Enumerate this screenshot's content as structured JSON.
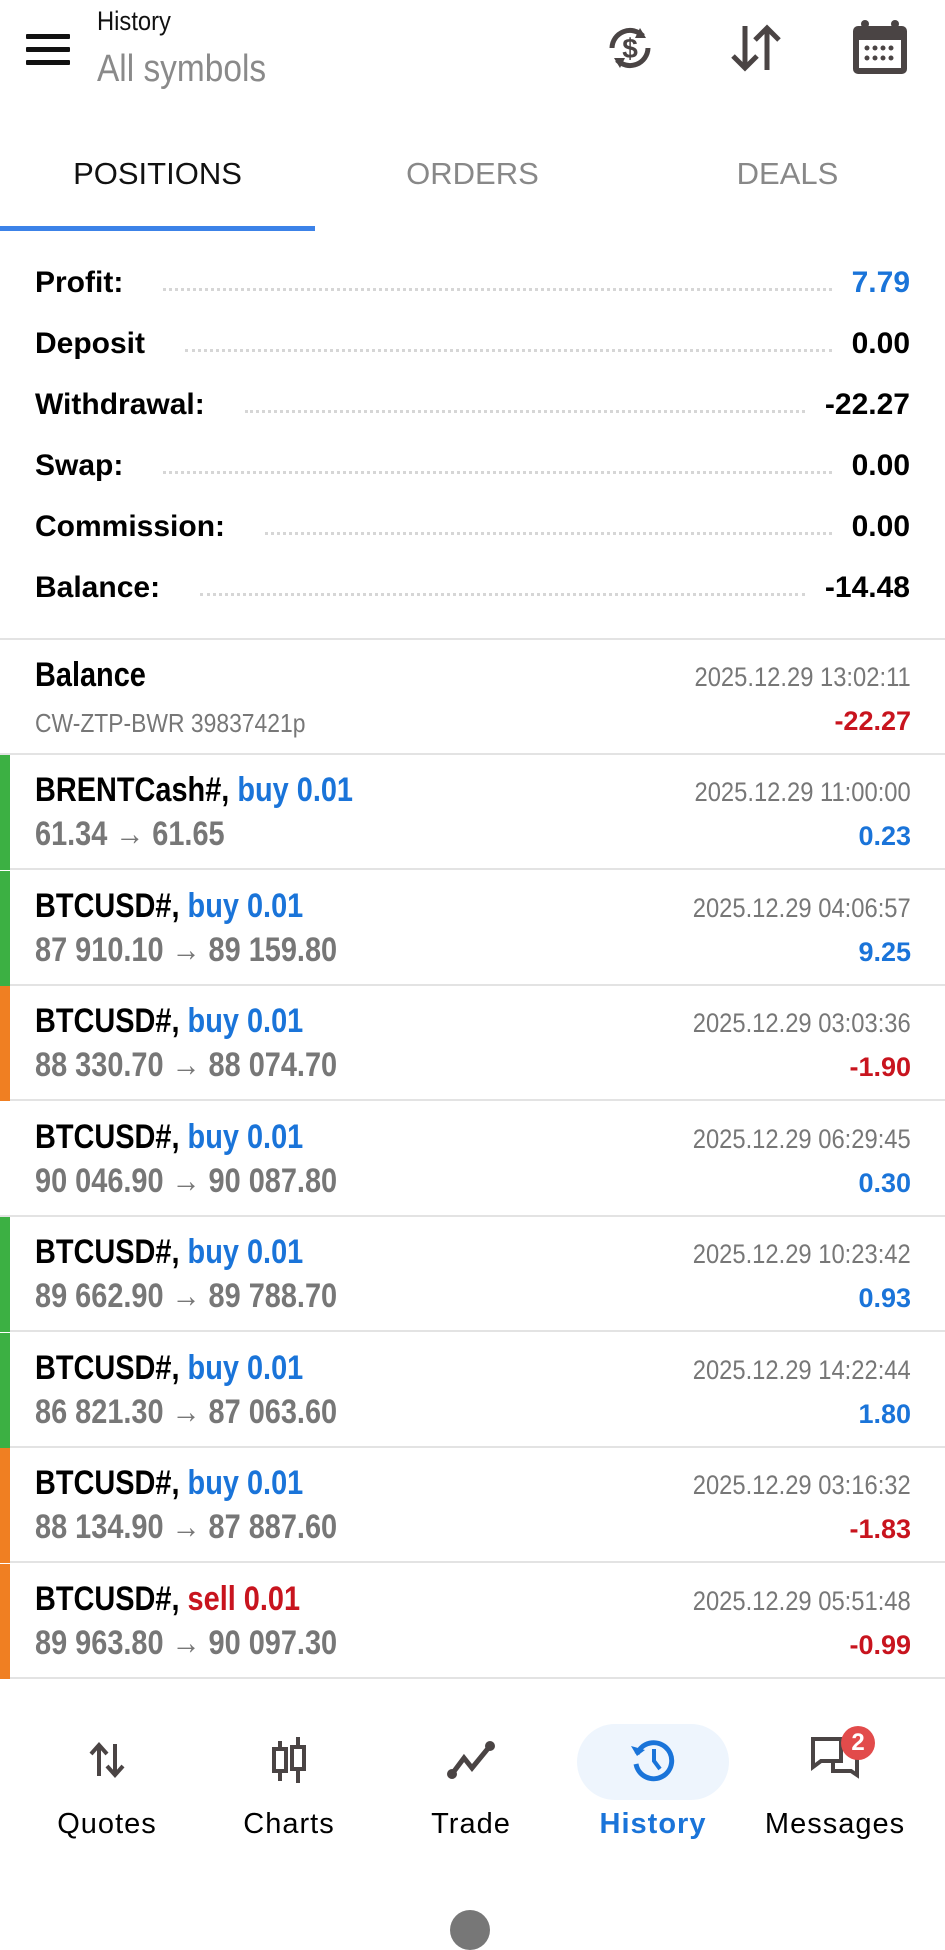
{
  "header": {
    "title": "History",
    "subtitle": "All symbols",
    "icons": [
      "menu-icon",
      "currency-exchange-icon",
      "sort-icon",
      "calendar-icon"
    ]
  },
  "tabs": [
    {
      "label": "POSITIONS",
      "active": true
    },
    {
      "label": "ORDERS"
    },
    {
      "label": "DEALS"
    }
  ],
  "summary": [
    {
      "label": "Profit:",
      "value": "7.79",
      "color": "#1a74d9"
    },
    {
      "label": "Deposit",
      "value": "0.00"
    },
    {
      "label": "Withdrawal:",
      "value": "-22.27"
    },
    {
      "label": "Swap:",
      "value": "0.00"
    },
    {
      "label": "Commission:",
      "value": "0.00"
    },
    {
      "label": "Balance:",
      "value": "-14.48"
    }
  ],
  "balance_entry": {
    "title": "Balance",
    "comment": "CW-ZTP-BWR 39837421p",
    "time": "2025.12.29 13:02:11",
    "amount": "-22.27"
  },
  "positions": [
    {
      "symbol": "BRENTCash#,",
      "side": "buy 0.01",
      "prices": "61.34 → 61.65",
      "time": "2025.12.29 11:00:00",
      "profit": "0.23",
      "marker": "#3cb043"
    },
    {
      "symbol": "BTCUSD#,",
      "side": "buy 0.01",
      "prices": "87 910.10 → 89 159.80",
      "time": "2025.12.29 04:06:57",
      "profit": "9.25",
      "marker": "#3cb043"
    },
    {
      "symbol": "BTCUSD#,",
      "side": "buy 0.01",
      "prices": "88 330.70 → 88 074.70",
      "time": "2025.12.29 03:03:36",
      "profit": "-1.90",
      "marker": "#f07f22"
    },
    {
      "symbol": "BTCUSD#,",
      "side": "buy 0.01",
      "prices": "90 046.90 → 90 087.80",
      "time": "2025.12.29 06:29:45",
      "profit": "0.30",
      "marker": ""
    },
    {
      "symbol": "BTCUSD#,",
      "side": "buy 0.01",
      "prices": "89 662.90 → 89 788.70",
      "time": "2025.12.29 10:23:42",
      "profit": "0.93",
      "marker": "#3cb043"
    },
    {
      "symbol": "BTCUSD#,",
      "side": "buy 0.01",
      "prices": "86 821.30 → 87 063.60",
      "time": "2025.12.29 14:22:44",
      "profit": "1.80",
      "marker": "#3cb043"
    },
    {
      "symbol": "BTCUSD#,",
      "side": "buy 0.01",
      "prices": "88 134.90 → 87 887.60",
      "time": "2025.12.29 03:16:32",
      "profit": "-1.83",
      "marker": "#f07f22"
    },
    {
      "symbol": "BTCUSD#,",
      "side": "sell 0.01",
      "prices": "89 963.80 → 90 097.30",
      "time": "2025.12.29 05:51:48",
      "profit": "-0.99",
      "marker": "#f07f22"
    }
  ],
  "nav": [
    {
      "label": "Quotes"
    },
    {
      "label": "Charts"
    },
    {
      "label": "Trade"
    },
    {
      "label": "History",
      "active": true
    },
    {
      "label": "Messages",
      "badge": "2"
    }
  ],
  "colors": {
    "accent": "#1a74d9",
    "loss": "#c8141e",
    "profit_marker": "#3cb043",
    "loss_marker": "#f07f22"
  }
}
